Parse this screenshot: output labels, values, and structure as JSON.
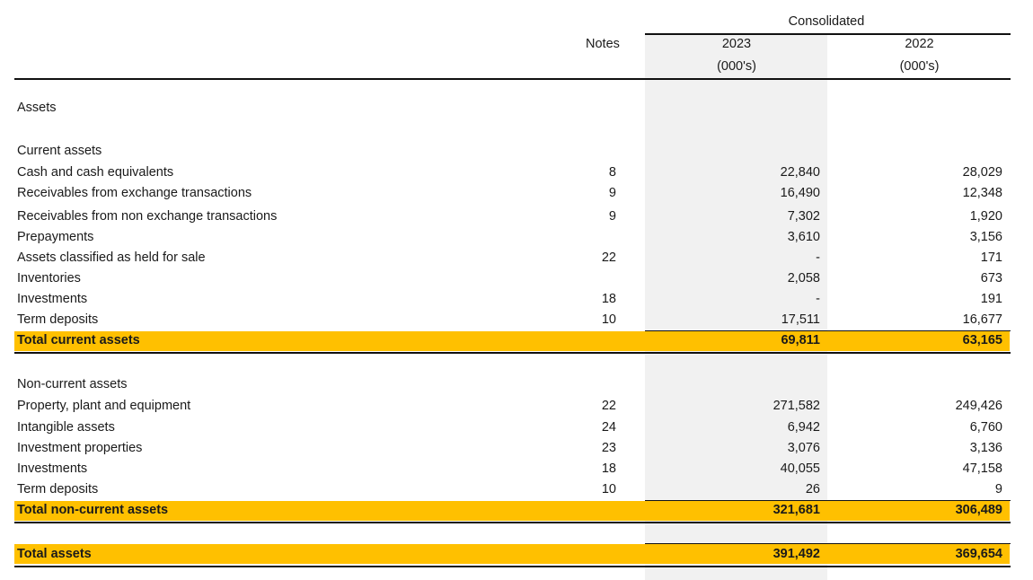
{
  "header": {
    "group": "Consolidated",
    "notes": "Notes",
    "y1": "2023",
    "y2": "2022",
    "unit1": "(000's)",
    "unit2": "(000's)"
  },
  "section_assets": "Assets",
  "current": {
    "heading": "Current assets",
    "rows": [
      {
        "label": "Cash and cash equivalents",
        "note": "8",
        "v2023": "22,840",
        "v2022": "28,029"
      },
      {
        "label": "Receivables from exchange transactions",
        "note": "9",
        "v2023": "16,490",
        "v2022": "12,348"
      },
      {
        "label": "Receivables from non exchange transactions",
        "note": "9",
        "v2023": "7,302",
        "v2022": "1,920"
      },
      {
        "label": "Prepayments",
        "note": "",
        "v2023": "3,610",
        "v2022": "3,156"
      },
      {
        "label": "Assets classified as held for sale",
        "note": "22",
        "v2023": "-",
        "v2022": "171"
      },
      {
        "label": "Inventories",
        "note": "",
        "v2023": "2,058",
        "v2022": "673"
      },
      {
        "label": "Investments",
        "note": "18",
        "v2023": "-",
        "v2022": "191"
      },
      {
        "label": "Term deposits",
        "note": "10",
        "v2023": "17,511",
        "v2022": "16,677"
      }
    ],
    "total": {
      "label": "Total current assets",
      "v2023": "69,811",
      "v2022": "63,165"
    }
  },
  "noncurrent": {
    "heading": "Non-current assets",
    "rows": [
      {
        "label": "Property, plant and equipment",
        "note": "22",
        "v2023": "271,582",
        "v2022": "249,426"
      },
      {
        "label": "Intangible assets",
        "note": "24",
        "v2023": "6,942",
        "v2022": "6,760"
      },
      {
        "label": "Investment properties",
        "note": "23",
        "v2023": "3,076",
        "v2022": "3,136"
      },
      {
        "label": "Investments",
        "note": "18",
        "v2023": "40,055",
        "v2022": "47,158"
      },
      {
        "label": "Term deposits",
        "note": "10",
        "v2023": "26",
        "v2022": "9"
      }
    ],
    "total": {
      "label": "Total non-current assets",
      "v2023": "321,681",
      "v2022": "306,489"
    }
  },
  "total_assets": {
    "label": "Total assets",
    "v2023": "391,492",
    "v2022": "369,654"
  },
  "colors": {
    "highlight": "#ffc000",
    "shade": "#f1f1f1"
  }
}
